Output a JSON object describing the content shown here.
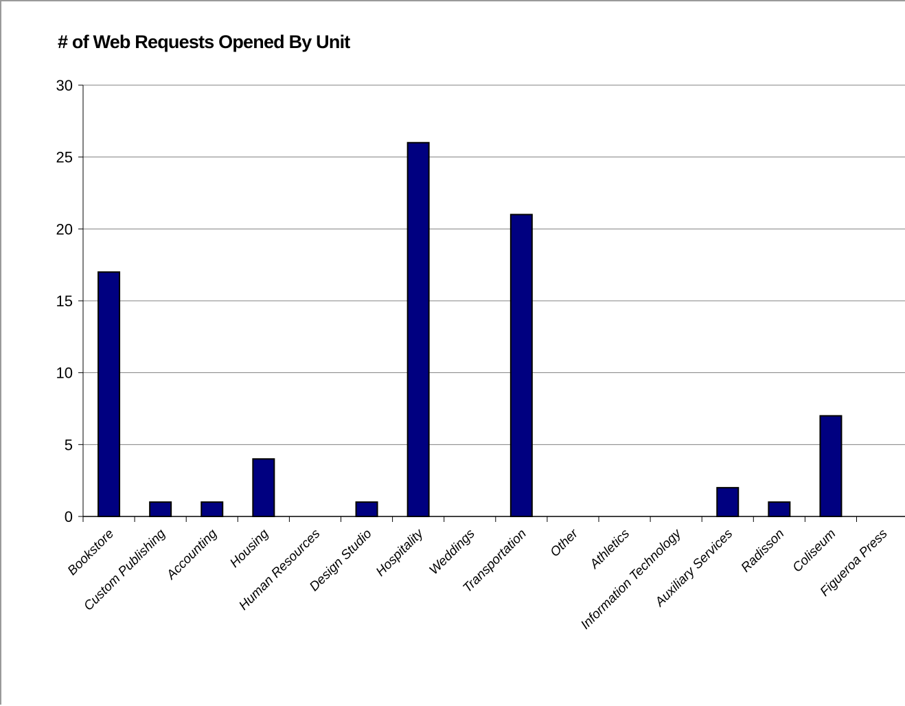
{
  "chart_data": {
    "type": "bar",
    "title": "# of Web Requests Opened By Unit",
    "xlabel": "",
    "ylabel": "",
    "ylim": [
      0,
      30
    ],
    "yticks": [
      0,
      5,
      10,
      15,
      20,
      25,
      30
    ],
    "grid": true,
    "legend": "none",
    "bar_color": "#000080",
    "bar_edge_color": "#000000",
    "categories": [
      "Bookstore",
      "Custom Publishing",
      "Accounting",
      "Housing",
      "Human Resources",
      "Design Studio",
      "Hospitality",
      "Weddings",
      "Transportation",
      "Other",
      "Athletics",
      "Information Technology",
      "Auxiliary Services",
      "Radisson",
      "Coliseum",
      "Figueroa Press"
    ],
    "values": [
      17,
      1,
      1,
      4,
      0,
      1,
      26,
      0,
      21,
      0,
      0,
      0,
      2,
      1,
      7,
      0
    ]
  }
}
